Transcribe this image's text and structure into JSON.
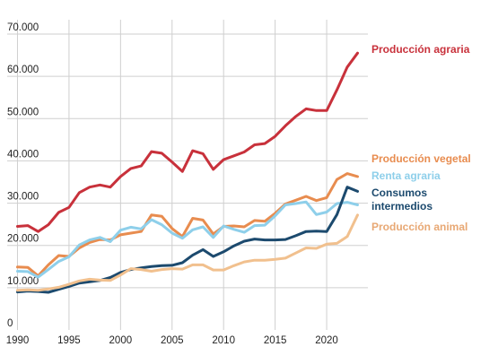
{
  "chart_data": {
    "type": "line",
    "title": "",
    "xlabel": "",
    "ylabel": "",
    "xlim": [
      1989,
      2024
    ],
    "ylim": [
      0,
      70000
    ],
    "grid": true,
    "x_ticks": [
      1990,
      1995,
      2000,
      2005,
      2010,
      2015,
      2020
    ],
    "x_tick_labels": [
      "1990",
      "1995",
      "2000",
      "2005",
      "2010",
      "2015",
      "2020"
    ],
    "y_ticks": [
      0,
      10000,
      20000,
      30000,
      40000,
      50000,
      60000,
      70000
    ],
    "y_tick_labels": [
      "0",
      "10.000",
      "20.000",
      "30.000",
      "40.000",
      "50.000",
      "60.000",
      "70.000"
    ],
    "x": [
      1990,
      1991,
      1992,
      1993,
      1994,
      1995,
      1996,
      1997,
      1998,
      1999,
      2000,
      2001,
      2002,
      2003,
      2004,
      2005,
      2006,
      2007,
      2008,
      2009,
      2010,
      2011,
      2012,
      2013,
      2014,
      2015,
      2016,
      2017,
      2018,
      2019,
      2020,
      2021,
      2022,
      2023
    ],
    "series": [
      {
        "name": "Producción agraria",
        "color": "#c8313b",
        "values": [
          24500,
          24700,
          23300,
          24900,
          27800,
          29000,
          32500,
          33800,
          34300,
          33800,
          36300,
          38200,
          38800,
          42200,
          41800,
          39700,
          37500,
          42400,
          41700,
          38000,
          40300,
          41200,
          42100,
          43800,
          44100,
          45800,
          48300,
          50500,
          52300,
          51900,
          51900,
          56800,
          62200,
          65500
        ]
      },
      {
        "name": "Producción vegetal",
        "color": "#e88c4f",
        "values": [
          14900,
          14800,
          12800,
          15400,
          17600,
          17400,
          19400,
          20700,
          21400,
          21300,
          22500,
          22900,
          23300,
          27200,
          26900,
          24000,
          22100,
          26400,
          26000,
          22700,
          24500,
          24600,
          24400,
          25900,
          25700,
          27600,
          29800,
          30700,
          31600,
          30600,
          31300,
          35600,
          37000,
          36300
        ]
      },
      {
        "name": "Renta agraria",
        "color": "#8ecfea",
        "values": [
          13900,
          13800,
          12500,
          14300,
          16200,
          17300,
          20100,
          21300,
          21900,
          20900,
          23600,
          24300,
          23900,
          26100,
          24900,
          22900,
          21700,
          23700,
          24400,
          21900,
          24600,
          23800,
          23100,
          24700,
          24800,
          27000,
          29600,
          29900,
          30300,
          27300,
          27900,
          29900,
          30200,
          29600
        ]
      },
      {
        "name": "Consumos intermedios",
        "color": "#1c4a6e",
        "values": [
          9000,
          9200,
          9100,
          8900,
          9600,
          10300,
          11100,
          11400,
          11700,
          12400,
          13600,
          14300,
          14700,
          15000,
          15200,
          15300,
          15900,
          17700,
          19000,
          17400,
          18500,
          19900,
          21000,
          21500,
          21300,
          21300,
          21400,
          22300,
          23300,
          23400,
          23300,
          27300,
          33800,
          32800
        ]
      },
      {
        "name": "Producción animal",
        "color": "#f1c08e",
        "values": [
          9400,
          9500,
          9400,
          9700,
          10100,
          10800,
          11600,
          12000,
          11800,
          11700,
          13000,
          14500,
          14300,
          13900,
          14300,
          14500,
          14400,
          15400,
          15400,
          14200,
          14200,
          15200,
          16100,
          16500,
          16500,
          16700,
          17000,
          18200,
          19400,
          19300,
          20300,
          20500,
          22100,
          27200
        ]
      }
    ],
    "labels": {
      "agraria": "Producción agraria",
      "vegetal": "Producción vegetal",
      "renta": "Renta agraria",
      "consumos_1": "Consumos",
      "consumos_2": "intermedios",
      "animal": "Producción animal"
    }
  }
}
